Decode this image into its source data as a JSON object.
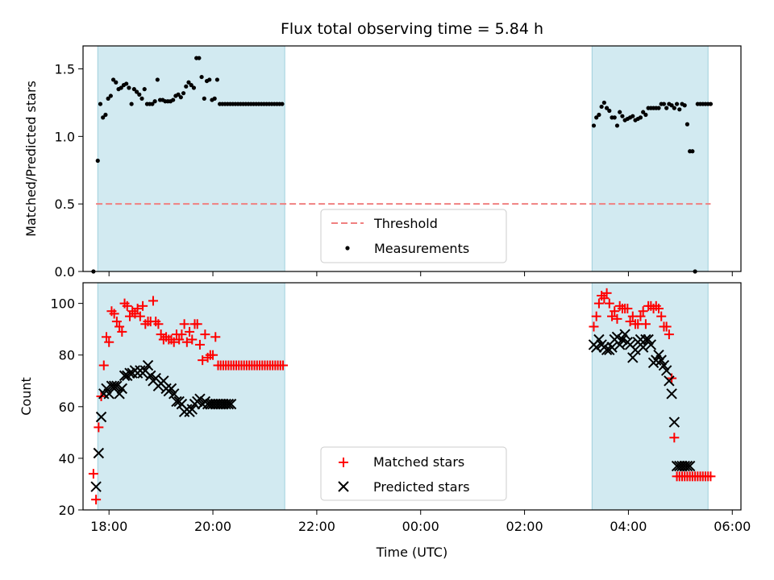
{
  "title": "Flux total observing time = 5.84 h",
  "chart_data": [
    {
      "type": "scatter",
      "ylabel": "Matched/Predicted stars",
      "ylim": [
        0,
        1.67
      ],
      "yticks": [
        0.0,
        0.5,
        1.0,
        1.5
      ],
      "ytick_labels": [
        "0.0",
        "0.5",
        "1.0",
        "1.5"
      ],
      "xlim": [
        "17:30",
        "06:10"
      ],
      "shaded_intervals": [
        [
          "17:47",
          "21:23"
        ],
        [
          "03:18",
          "05:32"
        ]
      ],
      "shade_color": "#add8e6",
      "threshold": {
        "name": "Threshold",
        "y": 0.5,
        "x_range": [
          "17:45",
          "05:35"
        ],
        "color": "#f08080",
        "style": "dashed"
      },
      "legend": {
        "position": "lower center",
        "entries": [
          "Threshold",
          "Measurements"
        ]
      },
      "series": [
        {
          "name": "Measurements",
          "color": "#000000",
          "marker": "dot",
          "x": [
            "17:42",
            "17:47",
            "17:50",
            "17:53",
            "17:56",
            "17:59",
            "18:02",
            "18:05",
            "18:08",
            "18:11",
            "18:14",
            "18:17",
            "18:20",
            "18:23",
            "18:26",
            "18:29",
            "18:32",
            "18:35",
            "18:38",
            "18:41",
            "18:44",
            "18:47",
            "18:50",
            "18:53",
            "18:56",
            "18:59",
            "19:02",
            "19:05",
            "19:08",
            "19:11",
            "19:14",
            "19:17",
            "19:20",
            "19:23",
            "19:26",
            "19:29",
            "19:32",
            "19:35",
            "19:38",
            "19:41",
            "19:44",
            "19:47",
            "19:50",
            "19:53",
            "19:56",
            "19:59",
            "20:02",
            "20:05",
            "20:08",
            "20:11",
            "20:14",
            "20:17",
            "20:20",
            "20:23",
            "20:26",
            "20:29",
            "20:32",
            "20:35",
            "20:38",
            "20:41",
            "20:44",
            "20:47",
            "20:50",
            "20:53",
            "20:56",
            "20:59",
            "21:02",
            "21:05",
            "21:08",
            "21:11",
            "21:14",
            "21:17",
            "21:20",
            "03:20",
            "03:23",
            "03:26",
            "03:29",
            "03:32",
            "03:35",
            "03:38",
            "03:41",
            "03:44",
            "03:47",
            "03:50",
            "03:53",
            "03:56",
            "03:59",
            "04:02",
            "04:05",
            "04:08",
            "04:11",
            "04:14",
            "04:17",
            "04:20",
            "04:23",
            "04:26",
            "04:29",
            "04:32",
            "04:35",
            "04:38",
            "04:41",
            "04:44",
            "04:47",
            "04:50",
            "04:53",
            "04:56",
            "04:59",
            "05:02",
            "05:05",
            "05:08",
            "05:11",
            "05:14",
            "05:17",
            "05:20",
            "05:23",
            "05:26",
            "05:29",
            "05:32",
            "05:35"
          ],
          "y": [
            0.0,
            0.82,
            1.24,
            1.14,
            1.16,
            1.28,
            1.3,
            1.42,
            1.4,
            1.35,
            1.36,
            1.38,
            1.39,
            1.36,
            1.24,
            1.35,
            1.33,
            1.31,
            1.28,
            1.35,
            1.24,
            1.24,
            1.24,
            1.26,
            1.42,
            1.27,
            1.27,
            1.26,
            1.26,
            1.26,
            1.27,
            1.3,
            1.31,
            1.29,
            1.32,
            1.37,
            1.4,
            1.38,
            1.36,
            1.58,
            1.58,
            1.44,
            1.28,
            1.41,
            1.42,
            1.27,
            1.28,
            1.42,
            1.24,
            1.24,
            1.24,
            1.24,
            1.24,
            1.24,
            1.24,
            1.24,
            1.24,
            1.24,
            1.24,
            1.24,
            1.24,
            1.24,
            1.24,
            1.24,
            1.24,
            1.24,
            1.24,
            1.24,
            1.24,
            1.24,
            1.24,
            1.24,
            1.24,
            1.08,
            1.14,
            1.16,
            1.22,
            1.25,
            1.21,
            1.19,
            1.14,
            1.14,
            1.08,
            1.18,
            1.15,
            1.12,
            1.13,
            1.14,
            1.15,
            1.12,
            1.13,
            1.14,
            1.18,
            1.16,
            1.21,
            1.21,
            1.21,
            1.21,
            1.21,
            1.24,
            1.24,
            1.21,
            1.24,
            1.23,
            1.21,
            1.24,
            1.2,
            1.24,
            1.23,
            1.09,
            0.89,
            0.89,
            0.0,
            1.24,
            1.24,
            1.24,
            1.24,
            1.24,
            1.24
          ]
        }
      ]
    },
    {
      "type": "scatter",
      "xlabel": "Time (UTC)",
      "ylabel": "Count",
      "ylim": [
        20,
        108
      ],
      "yticks": [
        20,
        40,
        60,
        80,
        100
      ],
      "ytick_labels": [
        "20",
        "40",
        "60",
        "80",
        "100"
      ],
      "xlim": [
        "17:30",
        "06:10"
      ],
      "xticks": [
        "18:00",
        "20:00",
        "22:00",
        "00:00",
        "02:00",
        "04:00",
        "06:00"
      ],
      "shaded_intervals": [
        [
          "17:47",
          "21:23"
        ],
        [
          "03:18",
          "05:32"
        ]
      ],
      "shade_color": "#add8e6",
      "legend": {
        "position": "lower center",
        "entries": [
          "Matched stars",
          "Predicted stars"
        ]
      },
      "series": [
        {
          "name": "Matched stars",
          "color": "#ff0000",
          "marker": "plus",
          "x": [
            "17:42",
            "17:45",
            "17:48",
            "17:51",
            "17:54",
            "17:57",
            "18:00",
            "18:03",
            "18:06",
            "18:09",
            "18:12",
            "18:15",
            "18:18",
            "18:21",
            "18:24",
            "18:27",
            "18:30",
            "18:33",
            "18:36",
            "18:39",
            "18:42",
            "18:45",
            "18:48",
            "18:51",
            "18:54",
            "18:57",
            "19:00",
            "19:03",
            "19:06",
            "19:09",
            "19:12",
            "19:15",
            "19:18",
            "19:21",
            "19:24",
            "19:27",
            "19:30",
            "19:33",
            "19:36",
            "19:39",
            "19:42",
            "19:45",
            "19:48",
            "19:51",
            "19:54",
            "19:57",
            "20:00",
            "20:03",
            "20:06",
            "20:09",
            "20:12",
            "20:15",
            "20:18",
            "20:21",
            "20:24",
            "20:27",
            "20:30",
            "20:33",
            "20:36",
            "20:39",
            "20:42",
            "20:45",
            "20:48",
            "20:51",
            "20:54",
            "20:57",
            "21:00",
            "21:03",
            "21:06",
            "21:09",
            "21:12",
            "21:15",
            "21:18",
            "21:21",
            "03:20",
            "03:23",
            "03:26",
            "03:29",
            "03:32",
            "03:35",
            "03:38",
            "03:41",
            "03:44",
            "03:47",
            "03:50",
            "03:53",
            "03:56",
            "03:59",
            "04:02",
            "04:05",
            "04:08",
            "04:11",
            "04:14",
            "04:17",
            "04:20",
            "04:23",
            "04:26",
            "04:29",
            "04:32",
            "04:35",
            "04:38",
            "04:41",
            "04:44",
            "04:47",
            "04:50",
            "04:53",
            "04:56",
            "04:59",
            "05:02",
            "05:05",
            "05:08",
            "05:11",
            "05:14",
            "05:17",
            "05:20",
            "05:23",
            "05:26",
            "05:29",
            "05:32",
            "05:35"
          ],
          "y": [
            34,
            24,
            52,
            64,
            76,
            87,
            85,
            97,
            96,
            93,
            91,
            89,
            100,
            99,
            95,
            97,
            96,
            98,
            95,
            99,
            92,
            93,
            93,
            101,
            93,
            92,
            88,
            86,
            87,
            86,
            86,
            85,
            88,
            86,
            88,
            92,
            85,
            89,
            86,
            92,
            92,
            84,
            78,
            88,
            79,
            80,
            80,
            87,
            76,
            76,
            76,
            76,
            76,
            76,
            76,
            76,
            76,
            76,
            76,
            76,
            76,
            76,
            76,
            76,
            76,
            76,
            76,
            76,
            76,
            76,
            76,
            76,
            76,
            76,
            91,
            95,
            100,
            103,
            102,
            104,
            100,
            95,
            97,
            94,
            99,
            98,
            98,
            98,
            93,
            95,
            92,
            92,
            95,
            97,
            92,
            99,
            99,
            98,
            99,
            98,
            95,
            91,
            91,
            88,
            71,
            48,
            33,
            33,
            33,
            33,
            33,
            33,
            33,
            33,
            33,
            33,
            33,
            33,
            33,
            33
          ],
          "n_visible": 100
        },
        {
          "name": "Predicted stars",
          "color": "#000000",
          "marker": "x",
          "x": [
            "17:45",
            "17:48",
            "17:51",
            "17:54",
            "17:57",
            "18:00",
            "18:03",
            "18:06",
            "18:09",
            "18:12",
            "18:15",
            "18:18",
            "18:21",
            "18:24",
            "18:27",
            "18:30",
            "18:33",
            "18:36",
            "18:39",
            "18:42",
            "18:45",
            "18:48",
            "18:51",
            "18:54",
            "18:57",
            "19:00",
            "19:03",
            "19:06",
            "19:09",
            "19:12",
            "19:15",
            "19:18",
            "19:21",
            "19:24",
            "19:27",
            "19:30",
            "19:33",
            "19:36",
            "19:39",
            "19:42",
            "19:45",
            "19:48",
            "19:51",
            "19:54",
            "19:57",
            "20:00",
            "20:03",
            "20:06",
            "20:09",
            "20:12",
            "20:15",
            "20:18",
            "20:21",
            "03:20",
            "03:23",
            "03:26",
            "03:29",
            "03:32",
            "03:35",
            "03:38",
            "03:41",
            "03:44",
            "03:47",
            "03:50",
            "03:53",
            "03:56",
            "03:59",
            "04:02",
            "04:05",
            "04:08",
            "04:11",
            "04:14",
            "04:17",
            "04:20",
            "04:23",
            "04:26",
            "04:29",
            "04:32",
            "04:35",
            "04:38",
            "04:41",
            "04:44",
            "04:47",
            "04:50",
            "04:53",
            "04:56",
            "04:59",
            "05:02",
            "05:05",
            "05:08",
            "05:11"
          ],
          "y": [
            29,
            42,
            56,
            65,
            67,
            65,
            68,
            68,
            68,
            65,
            67,
            72,
            72,
            73,
            73,
            74,
            73,
            74,
            73,
            74,
            76,
            72,
            70,
            71,
            68,
            69,
            70,
            67,
            66,
            67,
            65,
            62,
            62,
            61,
            58,
            59,
            58,
            59,
            61,
            62,
            63,
            61,
            62,
            61,
            61,
            61,
            61,
            61,
            61,
            61,
            61,
            61,
            61,
            84,
            83,
            86,
            84,
            83,
            82,
            82,
            83,
            86,
            87,
            84,
            86,
            88,
            85,
            84,
            79,
            82,
            85,
            86,
            83,
            86,
            86,
            84,
            77,
            78,
            80,
            78,
            76,
            74,
            70,
            65,
            54,
            37,
            37,
            37,
            37,
            37,
            37
          ]
        }
      ]
    }
  ]
}
